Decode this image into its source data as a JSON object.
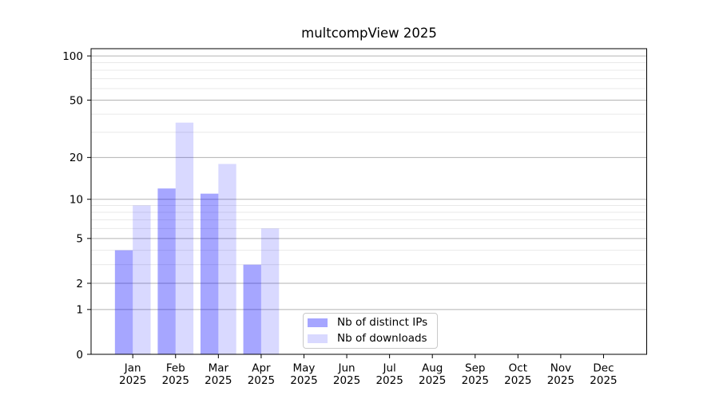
{
  "chart_data": {
    "type": "bar",
    "title": "multcompView 2025",
    "categories": [
      "Jan 2025",
      "Feb 2025",
      "Mar 2025",
      "Apr 2025",
      "May 2025",
      "Jun 2025",
      "Jul 2025",
      "Aug 2025",
      "Sep 2025",
      "Oct 2025",
      "Nov 2025",
      "Dec 2025"
    ],
    "series": [
      {
        "name": "Nb of distinct IPs",
        "color": "rgba(0,0,255,0.35)",
        "values": [
          4,
          12,
          11,
          3,
          null,
          null,
          null,
          null,
          null,
          null,
          null,
          null
        ]
      },
      {
        "name": "Nb of downloads",
        "color": "rgba(0,0,255,0.15)",
        "values": [
          9,
          35,
          18,
          6,
          null,
          null,
          null,
          null,
          null,
          null,
          null,
          null
        ]
      }
    ],
    "xlabel": "",
    "ylabel": "",
    "y_scale": "log10(1+x)",
    "ylim": [
      0,
      112
    ],
    "y_tick_values": [
      0,
      1,
      2,
      5,
      10,
      20,
      50,
      100
    ],
    "y_minor_grid_values": [
      3,
      4,
      6,
      7,
      8,
      9,
      30,
      40,
      60,
      70,
      80,
      90
    ],
    "grid": true,
    "legend_position": "lower center"
  },
  "colors": {
    "background": "#ffffff",
    "axis": "#000000",
    "text": "#000000",
    "major_grid": "#b3b3b3",
    "minor_grid": "#e9e9e9",
    "legend_border": "#c9c9c9"
  }
}
